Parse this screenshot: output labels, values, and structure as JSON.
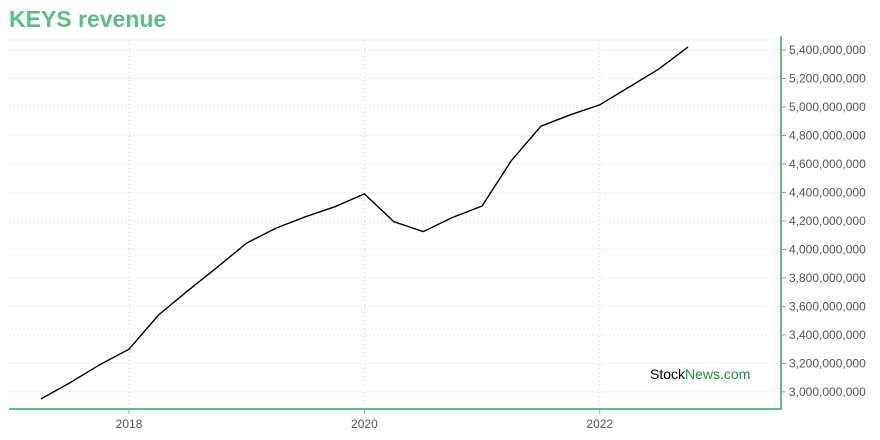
{
  "colors": {
    "title": "#5cbf85",
    "axis": "#5cbf85",
    "grid": "#b9dfcf",
    "line": "#000000",
    "watermark_stock": "#000000",
    "watermark_news": "#1f8f3b"
  },
  "watermark": {
    "part1": "Stock",
    "part2": "News",
    "part3": ".com"
  },
  "chart_data": {
    "type": "line",
    "title": "KEYS revenue",
    "xlabel": "",
    "ylabel": "",
    "grid": true,
    "y_axis_side": "right",
    "xlim": [
      2016.98,
      2023.54
    ],
    "ylim": [
      2880000000,
      5470000000
    ],
    "x_ticks": [
      2018,
      2020,
      2022
    ],
    "x_tick_labels": [
      "2018",
      "2020",
      "2022"
    ],
    "y_ticks": [
      3000000000,
      3200000000,
      3400000000,
      3600000000,
      3800000000,
      4000000000,
      4200000000,
      4400000000,
      4600000000,
      4800000000,
      5000000000,
      5200000000,
      5400000000
    ],
    "y_tick_labels": [
      "3,000,000,000",
      "3,200,000,000",
      "3,400,000,000",
      "3,600,000,000",
      "3,800,000,000",
      "4,000,000,000",
      "4,200,000,000",
      "4,400,000,000",
      "4,600,000,000",
      "4,800,000,000",
      "5,000,000,000",
      "5,200,000,000",
      "5,400,000,000"
    ],
    "x": [
      2017.25,
      2017.5,
      2017.75,
      2018.0,
      2018.25,
      2018.5,
      2018.75,
      2019.0,
      2019.25,
      2019.5,
      2019.75,
      2020.0,
      2020.25,
      2020.5,
      2020.75,
      2021.0,
      2021.25,
      2021.5,
      2021.75,
      2022.0,
      2022.25,
      2022.5,
      2022.75
    ],
    "values": [
      2950000000,
      3065000000,
      3190000000,
      3300000000,
      3540000000,
      3710000000,
      3875000000,
      4045000000,
      4150000000,
      4230000000,
      4300000000,
      4390000000,
      4195000000,
      4125000000,
      4225000000,
      4305000000,
      4625000000,
      4865000000,
      4945000000,
      5015000000,
      5140000000,
      5265000000,
      5420000000
    ]
  }
}
